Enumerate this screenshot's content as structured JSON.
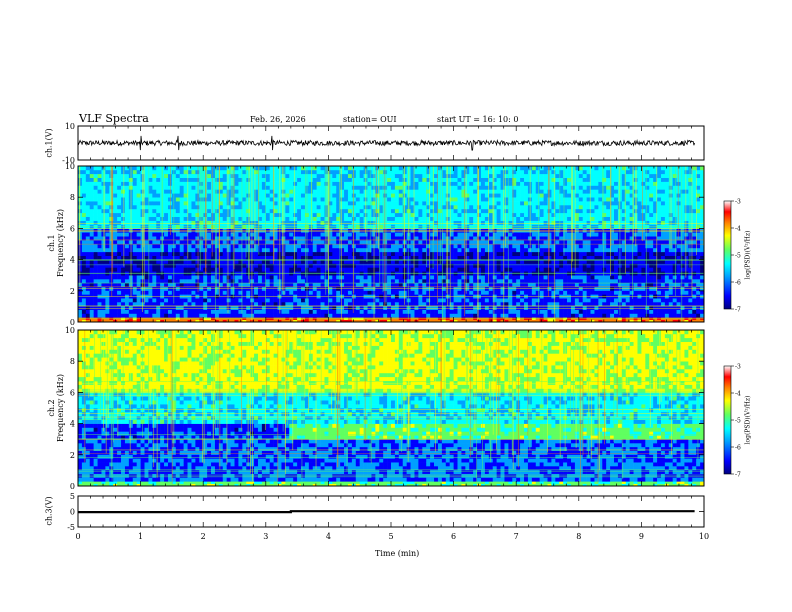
{
  "header": {
    "title": "VLF Spectra",
    "date": "Feb. 26, 2026",
    "station": "station= OUI",
    "start": "start UT =   16: 10: 0"
  },
  "colors": {
    "waveform": "#000000",
    "colormap": [
      "#000080",
      "#0000ff",
      "#00a0ff",
      "#00ffff",
      "#60ff60",
      "#ffff00",
      "#ff8000",
      "#ff0000",
      "#ffffff"
    ]
  },
  "chart_data": [
    {
      "id": "ch1-waveform",
      "type": "line",
      "ylabel": "ch.1(V)",
      "ylim": [
        -10,
        10
      ],
      "yticks": [
        "10",
        "-10"
      ],
      "xlim": [
        0,
        10
      ],
      "trace": {
        "kind": "noise",
        "center": 0,
        "amplitude": 1.5,
        "spikes_at_min": [
          1.0,
          1.6,
          3.1,
          6.3
        ]
      }
    },
    {
      "id": "ch1-spectrogram",
      "type": "heatmap",
      "ylabel": "ch.1\nFrequency (kHz)",
      "ylim": [
        0,
        10
      ],
      "yticks": [
        "0",
        "2",
        "4",
        "6",
        "8",
        "10"
      ],
      "xlim": [
        0,
        10
      ],
      "colorbar": {
        "label": "log(PSD)(V²/Hz)",
        "range": [
          -7,
          -3
        ],
        "ticks": [
          "-3",
          "-4",
          "-5",
          "-6",
          "-7"
        ]
      },
      "bands": [
        {
          "f": [
            0,
            0.3
          ],
          "level": -3.5
        },
        {
          "f": [
            0.3,
            3.0
          ],
          "level": -6.3
        },
        {
          "f": [
            3.0,
            4.5
          ],
          "level": -6.6
        },
        {
          "f": [
            4.5,
            6.0
          ],
          "level": -6.1
        },
        {
          "f": [
            6.0,
            10.0
          ],
          "level": -5.4
        }
      ]
    },
    {
      "id": "ch2-spectrogram",
      "type": "heatmap",
      "ylabel": "ch.2\nFrequency (kHz)",
      "ylim": [
        0,
        10
      ],
      "yticks": [
        "0",
        "2",
        "4",
        "6",
        "8",
        "10"
      ],
      "xlim": [
        0,
        10
      ],
      "colorbar": {
        "label": "log(PSD)(V²/Hz)",
        "range": [
          -7,
          -3
        ],
        "ticks": [
          "-3",
          "-4",
          "-5",
          "-6",
          "-7"
        ]
      },
      "bands": [
        {
          "f": [
            0,
            0.3
          ],
          "level": -4.8
        },
        {
          "f": [
            0.3,
            3.0
          ],
          "level": -6.1
        },
        {
          "f": [
            3.0,
            4.0
          ],
          "level": -6.3
        },
        {
          "f": [
            4.0,
            6.0
          ],
          "level": -5.4
        },
        {
          "f": [
            6.0,
            10.0
          ],
          "level": -4.3
        }
      ],
      "step": {
        "t_min": 3.4,
        "f": [
          3.0,
          4.0
        ],
        "level_after": -4.8
      }
    },
    {
      "id": "ch3-waveform",
      "type": "line",
      "ylabel": "ch.3(V)",
      "ylim": [
        -5,
        5
      ],
      "yticks": [
        "5",
        "0",
        "-5"
      ],
      "xlim": [
        0,
        10
      ],
      "xlabel": "Time (min)",
      "xticks": [
        "0",
        "1",
        "2",
        "3",
        "4",
        "5",
        "6",
        "7",
        "8",
        "9",
        "10"
      ],
      "trace": {
        "kind": "step",
        "x": [
          0,
          3.4,
          3.4,
          9.85
        ],
        "y": [
          -0.2,
          -0.2,
          0.1,
          0.1
        ]
      }
    }
  ]
}
